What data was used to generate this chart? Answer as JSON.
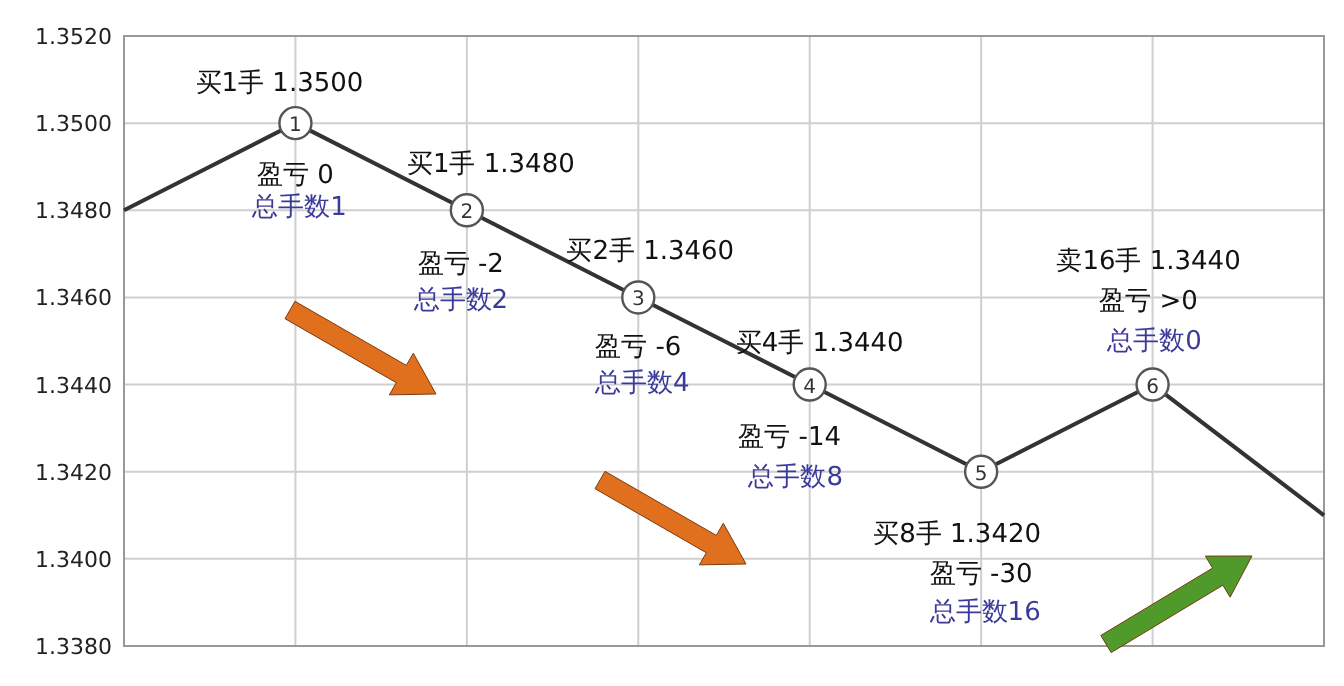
{
  "chart_data": {
    "type": "line",
    "categories": [
      null,
      null,
      null,
      null,
      null,
      null,
      null,
      null
    ],
    "values": [
      1.348,
      1.35,
      1.348,
      1.346,
      1.344,
      1.342,
      1.344,
      1.341
    ],
    "color": "#333333",
    "marker": "circle",
    "grid": true,
    "ylim": [
      1.338,
      1.352
    ],
    "yticks": [
      {
        "value": 1.338,
        "label": "1.3380"
      },
      {
        "value": 1.34,
        "label": "1.3400"
      },
      {
        "value": 1.342,
        "label": "1.3420"
      },
      {
        "value": 1.344,
        "label": "1.3440"
      },
      {
        "value": 1.346,
        "label": "1.3460"
      },
      {
        "value": 1.348,
        "label": "1.3480"
      },
      {
        "value": 1.35,
        "label": "1.3500"
      },
      {
        "value": 1.352,
        "label": "1.3520"
      }
    ],
    "annotations": [
      "买1手  1.3500",
      "盈亏 0",
      "总手数1",
      "买1手  1.3480",
      "盈亏 -2",
      "总手数2",
      "买2手  1.3460",
      "盈亏 -6",
      "总手数4",
      "买4手  1.3440",
      "盈亏 -14",
      "总手数8",
      "买8手  1.3420",
      "盈亏 -30",
      "总手数16",
      "卖16手  1.3440",
      "盈亏 >0",
      "总手数0",
      "1",
      "2",
      "3",
      "4",
      "5",
      "6"
    ]
  }
}
